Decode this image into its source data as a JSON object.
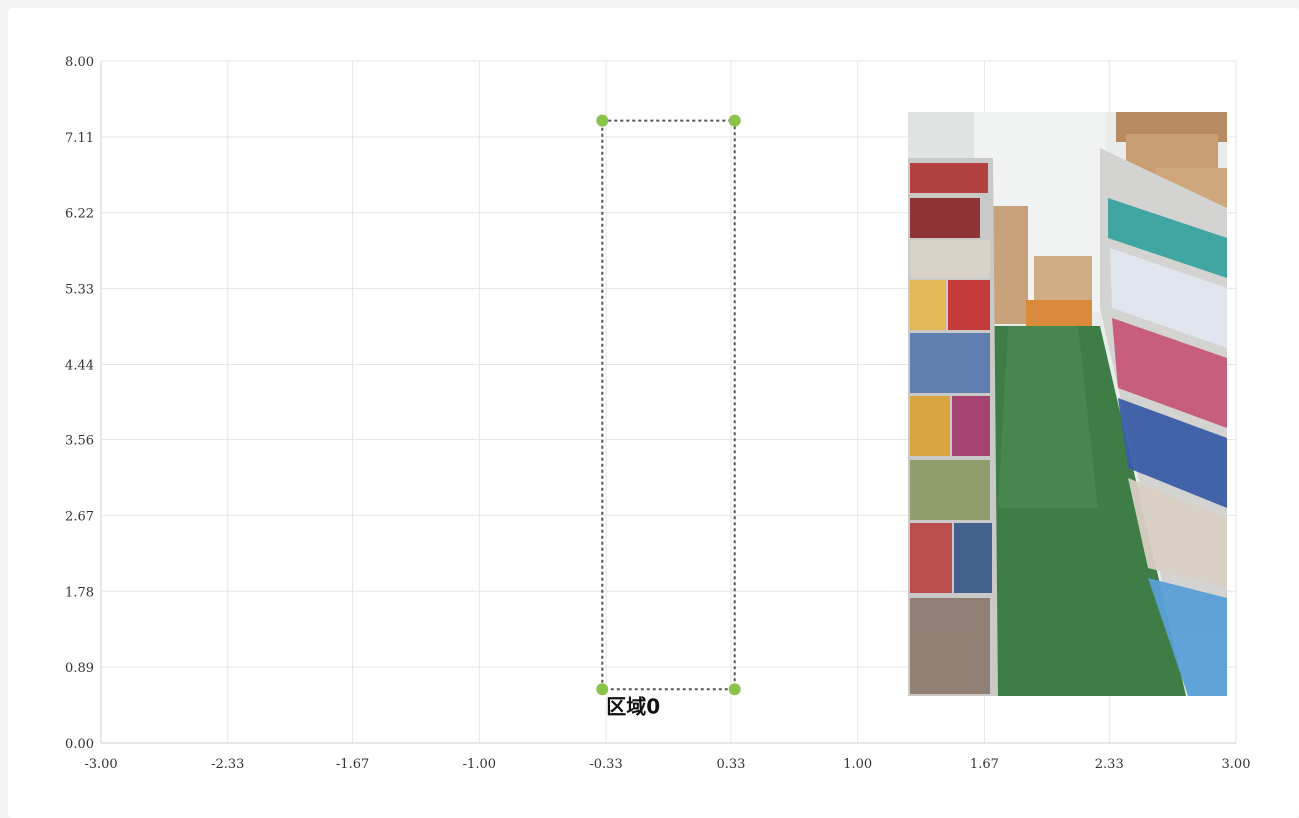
{
  "chart_data": {
    "type": "scatter",
    "x_ticks": [
      "-3.00",
      "-2.33",
      "-1.67",
      "-1.00",
      "-0.33",
      "0.33",
      "1.00",
      "1.67",
      "2.33",
      "3.00"
    ],
    "y_ticks": [
      "0.00",
      "0.89",
      "1.78",
      "2.67",
      "3.56",
      "4.44",
      "5.33",
      "6.22",
      "7.11",
      "8.00"
    ],
    "xlim": [
      -3.0,
      3.0
    ],
    "ylim": [
      0.0,
      8.0
    ],
    "grid": true,
    "regions": [
      {
        "label": "区域0",
        "points": [
          [
            -0.35,
            7.3
          ],
          [
            0.35,
            7.3
          ],
          [
            0.35,
            0.63
          ],
          [
            -0.35,
            0.63
          ]
        ],
        "point_color": "#8bc34a",
        "line_color": "#555555"
      }
    ]
  },
  "camera_preview": {
    "name": "store-aisle-camera-image",
    "floor_color": "#3f7d47",
    "wall_color": "#e8ebe9"
  }
}
